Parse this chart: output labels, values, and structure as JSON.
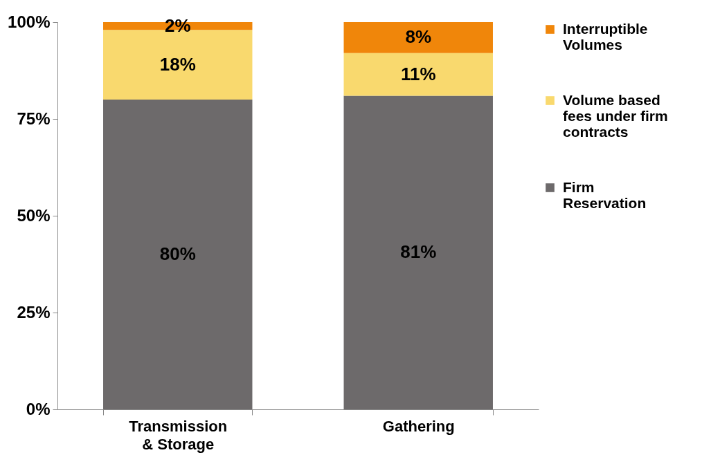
{
  "chart_data": {
    "type": "bar",
    "stacked": true,
    "categories": [
      "Transmission & Storage",
      "Gathering"
    ],
    "series": [
      {
        "name": "Firm Reservation",
        "color": "#6d6a6b",
        "values": [
          80,
          81
        ],
        "value_labels": [
          "80%",
          "81%"
        ]
      },
      {
        "name": "Volume based fees under firm contracts",
        "color": "#f9d96e",
        "values": [
          18,
          11
        ],
        "value_labels": [
          "18%",
          "11%"
        ]
      },
      {
        "name": "Interruptible Volumes",
        "color": "#f0860a",
        "values": [
          2,
          8
        ],
        "value_labels": [
          "2%",
          "8%"
        ]
      }
    ],
    "ylim": [
      0,
      100
    ],
    "yticks": [
      {
        "value": 0,
        "label": "0%"
      },
      {
        "value": 25,
        "label": "25%"
      },
      {
        "value": 50,
        "label": "50%"
      },
      {
        "value": 75,
        "label": "75%"
      },
      {
        "value": 100,
        "label": "100%"
      }
    ],
    "grid": false,
    "legend": "right"
  }
}
